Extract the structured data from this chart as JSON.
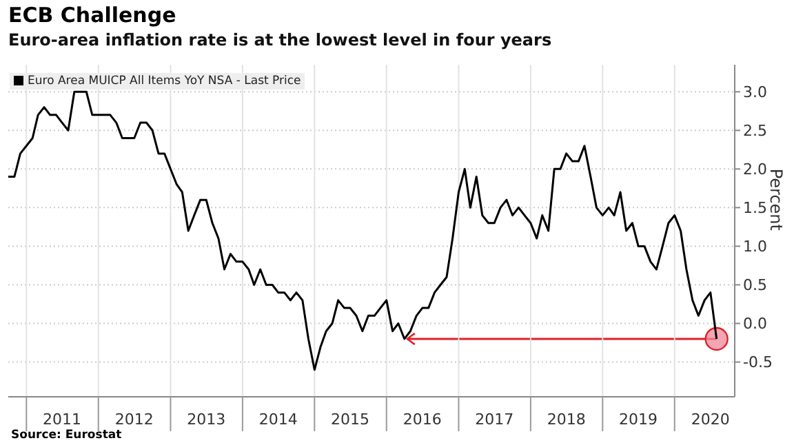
{
  "chart_data": {
    "type": "line",
    "title": "ECB Challenge",
    "subtitle": "Euro-area inflation rate is at the lowest level in four years",
    "ylabel": "Percent",
    "annotations": [
      "Source: Eurostat"
    ],
    "x": [
      "2010-10",
      "2010-11",
      "2010-12",
      "2011-01",
      "2011-02",
      "2011-03",
      "2011-04",
      "2011-05",
      "2011-06",
      "2011-07",
      "2011-08",
      "2011-09",
      "2011-10",
      "2011-11",
      "2011-12",
      "2012-01",
      "2012-02",
      "2012-03",
      "2012-04",
      "2012-05",
      "2012-06",
      "2012-07",
      "2012-08",
      "2012-09",
      "2012-10",
      "2012-11",
      "2012-12",
      "2013-01",
      "2013-02",
      "2013-03",
      "2013-04",
      "2013-05",
      "2013-06",
      "2013-07",
      "2013-08",
      "2013-09",
      "2013-10",
      "2013-11",
      "2013-12",
      "2014-01",
      "2014-02",
      "2014-03",
      "2014-04",
      "2014-05",
      "2014-06",
      "2014-07",
      "2014-08",
      "2014-09",
      "2014-10",
      "2014-11",
      "2014-12",
      "2015-01",
      "2015-02",
      "2015-03",
      "2015-04",
      "2015-05",
      "2015-06",
      "2015-07",
      "2015-08",
      "2015-09",
      "2015-10",
      "2015-11",
      "2015-12",
      "2016-01",
      "2016-02",
      "2016-03",
      "2016-04",
      "2016-05",
      "2016-06",
      "2016-07",
      "2016-08",
      "2016-09",
      "2016-10",
      "2016-11",
      "2016-12",
      "2017-01",
      "2017-02",
      "2017-03",
      "2017-04",
      "2017-05",
      "2017-06",
      "2017-07",
      "2017-08",
      "2017-09",
      "2017-10",
      "2017-11",
      "2017-12",
      "2018-01",
      "2018-02",
      "2018-03",
      "2018-04",
      "2018-05",
      "2018-06",
      "2018-07",
      "2018-08",
      "2018-09",
      "2018-10",
      "2018-11",
      "2018-12",
      "2019-01",
      "2019-02",
      "2019-03",
      "2019-04",
      "2019-05",
      "2019-06",
      "2019-07",
      "2019-08",
      "2019-09",
      "2019-10",
      "2019-11",
      "2019-12",
      "2020-01",
      "2020-02",
      "2020-03",
      "2020-04",
      "2020-05",
      "2020-06",
      "2020-07",
      "2020-08"
    ],
    "series": [
      {
        "name": "Euro Area MUICP All Items YoY NSA - Last Price",
        "color": "#000000",
        "values": [
          1.9,
          1.9,
          2.2,
          2.3,
          2.4,
          2.7,
          2.8,
          2.7,
          2.7,
          2.6,
          2.5,
          3.0,
          3.0,
          3.0,
          2.7,
          2.7,
          2.7,
          2.7,
          2.6,
          2.4,
          2.4,
          2.4,
          2.6,
          2.6,
          2.5,
          2.2,
          2.2,
          2.0,
          1.8,
          1.7,
          1.2,
          1.4,
          1.6,
          1.6,
          1.3,
          1.1,
          0.7,
          0.9,
          0.8,
          0.8,
          0.7,
          0.5,
          0.7,
          0.5,
          0.5,
          0.4,
          0.4,
          0.3,
          0.4,
          0.3,
          -0.2,
          -0.6,
          -0.3,
          -0.1,
          0.0,
          0.3,
          0.2,
          0.2,
          0.1,
          -0.1,
          0.1,
          0.1,
          0.2,
          0.3,
          -0.1,
          0.0,
          -0.2,
          -0.1,
          0.1,
          0.2,
          0.2,
          0.4,
          0.5,
          0.6,
          1.1,
          1.7,
          2.0,
          1.5,
          1.9,
          1.4,
          1.3,
          1.3,
          1.5,
          1.6,
          1.4,
          1.5,
          1.4,
          1.3,
          1.1,
          1.4,
          1.2,
          2.0,
          2.0,
          2.2,
          2.1,
          2.1,
          2.3,
          1.9,
          1.5,
          1.4,
          1.5,
          1.4,
          1.7,
          1.2,
          1.3,
          1.0,
          1.0,
          0.8,
          0.7,
          1.0,
          1.3,
          1.4,
          1.2,
          0.7,
          0.3,
          0.1,
          0.3,
          0.4,
          -0.2
        ]
      }
    ],
    "xlim": [
      "2010-10",
      "2020-11"
    ],
    "xticks": [
      {
        "value": "2011-01",
        "label": null
      },
      {
        "value": "2011-07",
        "label": "2011"
      },
      {
        "value": "2012-01",
        "label": null
      },
      {
        "value": "2012-07",
        "label": "2012"
      },
      {
        "value": "2013-01",
        "label": null
      },
      {
        "value": "2013-07",
        "label": "2013"
      },
      {
        "value": "2014-01",
        "label": null
      },
      {
        "value": "2014-07",
        "label": "2014"
      },
      {
        "value": "2015-01",
        "label": null
      },
      {
        "value": "2015-07",
        "label": "2015"
      },
      {
        "value": "2016-01",
        "label": null
      },
      {
        "value": "2016-07",
        "label": "2016"
      },
      {
        "value": "2017-01",
        "label": null
      },
      {
        "value": "2017-07",
        "label": "2017"
      },
      {
        "value": "2018-01",
        "label": null
      },
      {
        "value": "2018-07",
        "label": "2018"
      },
      {
        "value": "2019-01",
        "label": null
      },
      {
        "value": "2019-07",
        "label": "2019"
      },
      {
        "value": "2020-01",
        "label": null
      },
      {
        "value": "2020-07",
        "label": "2020"
      }
    ],
    "ylim": [
      -0.95,
      3.35
    ],
    "yticks": [
      {
        "value": -0.5,
        "label": "-0.5"
      },
      {
        "value": 0,
        "label": "0.0"
      },
      {
        "value": 0.5,
        "label": "0.5"
      },
      {
        "value": 1,
        "label": "1.0"
      },
      {
        "value": 1.5,
        "label": "1.5"
      },
      {
        "value": 2,
        "label": "2.0"
      },
      {
        "value": 2.5,
        "label": "2.5"
      },
      {
        "value": 3,
        "label": "3.0"
      }
    ],
    "grid": true,
    "legend": "top left",
    "marker": "none",
    "line_style": "solid"
  }
}
